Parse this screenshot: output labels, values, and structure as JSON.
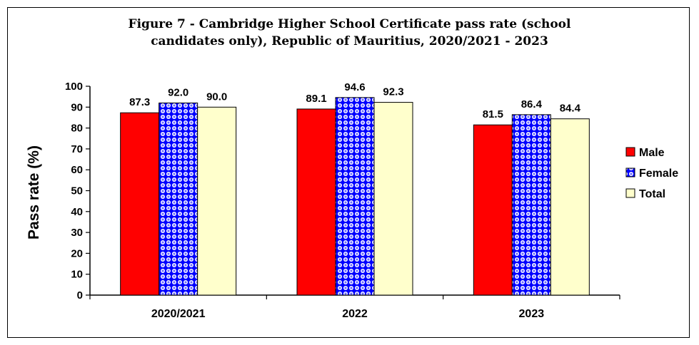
{
  "chart_data": {
    "type": "bar",
    "title_lines": [
      "Figure 7 - Cambridge Higher School Certificate pass rate (school",
      "candidates only), Republic of Mauritius, 2020/2021 - 2023"
    ],
    "categories": [
      "2020/2021",
      "2022",
      "2023"
    ],
    "series": [
      {
        "name": "Male",
        "values": [
          87.3,
          89.1,
          81.5
        ],
        "value_labels": [
          "87.3",
          "89.1",
          "81.5"
        ],
        "color": "#ff0000"
      },
      {
        "name": "Female",
        "values": [
          92.0,
          94.6,
          86.4
        ],
        "value_labels": [
          "92.0",
          "94.6",
          "86.4"
        ],
        "color": "#0000ff"
      },
      {
        "name": "Total",
        "values": [
          90.0,
          92.3,
          84.4
        ],
        "value_labels": [
          "90.0",
          "92.3",
          "84.4"
        ],
        "color": "#ffffcc"
      }
    ],
    "xlabel": "",
    "ylabel": "Pass rate (%)",
    "ylim": [
      0,
      100
    ],
    "yticks": [
      "0",
      "10",
      "20",
      "30",
      "40",
      "50",
      "60",
      "70",
      "80",
      "90",
      "100"
    ],
    "grid": false,
    "legend_position": "right"
  }
}
